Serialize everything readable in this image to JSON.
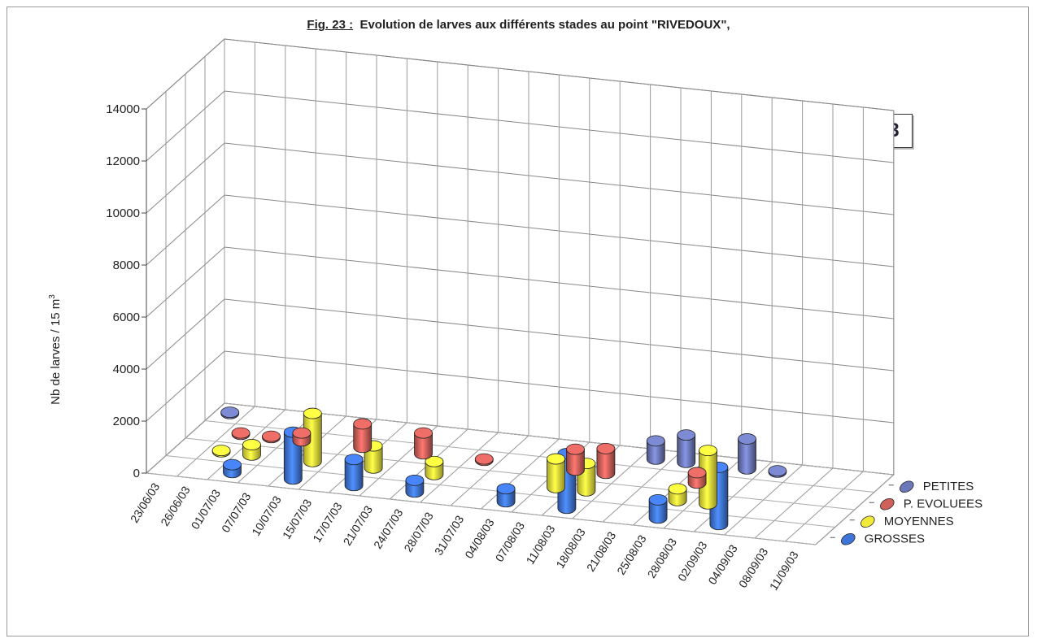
{
  "figure": {
    "fig_label": "Fig. 23 :",
    "title": "Evolution de larves aux différents stades au point \"RIVEDOUX\",",
    "year": "2003"
  },
  "chart_data": {
    "type": "bar",
    "style": "3d-cylinder",
    "title": "Fig. 23 : Evolution de larves aux différents stades au point \"RIVEDOUX\",",
    "ylabel": "Nb de larves / 15 m",
    "ylabel_sup": "3",
    "xlabel": "",
    "ylim": [
      0,
      14000
    ],
    "yticks": [
      0,
      2000,
      4000,
      6000,
      8000,
      10000,
      12000,
      14000
    ],
    "grid": true,
    "legend_position": "right",
    "categories": [
      "23/06/03",
      "26/06/03",
      "01/07/03",
      "07/07/03",
      "10/07/03",
      "15/07/03",
      "17/07/03",
      "21/07/03",
      "24/07/03",
      "28/07/03",
      "31/07/03",
      "04/08/03",
      "07/08/03",
      "11/08/03",
      "18/08/03",
      "21/08/03",
      "25/08/03",
      "28/08/03",
      "02/09/03",
      "04/09/03",
      "08/09/03",
      "11/09/03"
    ],
    "series": [
      {
        "name": "PETITES",
        "color": "#6d78b8",
        "values": [
          50,
          0,
          0,
          0,
          0,
          0,
          0,
          0,
          0,
          0,
          0,
          0,
          0,
          0,
          700,
          1050,
          0,
          1150,
          50,
          0,
          0,
          0
        ]
      },
      {
        "name": "P. EVOLUEES",
        "color": "#d0605a",
        "values": [
          0,
          50,
          50,
          300,
          0,
          900,
          0,
          800,
          0,
          50,
          0,
          0,
          800,
          950,
          0,
          0,
          400,
          0,
          0,
          0,
          0,
          0
        ]
      },
      {
        "name": "MOYENNES",
        "color": "#f2ea3a",
        "values": [
          0,
          50,
          400,
          0,
          1850,
          0,
          850,
          0,
          500,
          0,
          0,
          0,
          1100,
          1050,
          0,
          0,
          450,
          2050,
          0,
          0,
          0,
          0
        ]
      },
      {
        "name": "GROSSES",
        "color": "#3f74d9",
        "values": [
          0,
          0,
          300,
          0,
          1800,
          0,
          1000,
          0,
          450,
          0,
          0,
          500,
          0,
          2100,
          0,
          0,
          700,
          0,
          2200,
          0,
          0,
          0
        ]
      }
    ]
  }
}
